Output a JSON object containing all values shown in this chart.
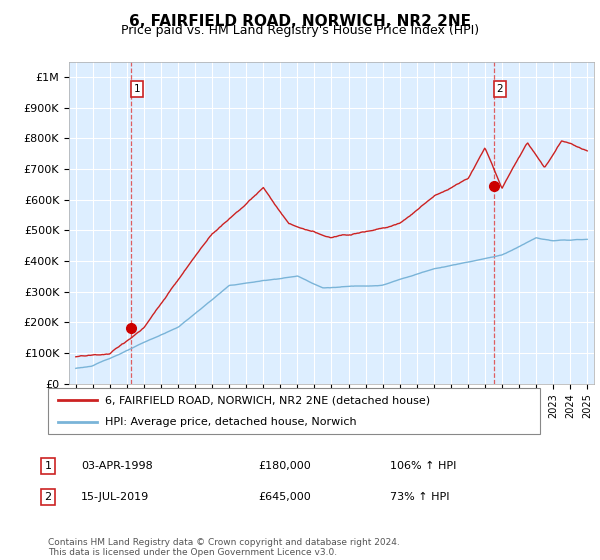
{
  "title": "6, FAIRFIELD ROAD, NORWICH, NR2 2NE",
  "subtitle": "Price paid vs. HM Land Registry's House Price Index (HPI)",
  "ylim": [
    0,
    1050000
  ],
  "yticks": [
    0,
    100000,
    200000,
    300000,
    400000,
    500000,
    600000,
    700000,
    800000,
    900000,
    1000000
  ],
  "ytick_labels": [
    "£0",
    "£100K",
    "£200K",
    "£300K",
    "£400K",
    "£500K",
    "£600K",
    "£700K",
    "£800K",
    "£900K",
    "£1M"
  ],
  "xlim_min": 1994.6,
  "xlim_max": 2025.4,
  "sale1_x": 1998.25,
  "sale1_y": 180000,
  "sale2_x": 2019.54,
  "sale2_y": 645000,
  "hpi_line_color": "#7ab4d8",
  "price_line_color": "#cc2222",
  "sale_dot_color": "#cc0000",
  "dashed_line_color": "#dd4444",
  "background_color": "#ffffff",
  "plot_bg_color": "#ddeeff",
  "grid_color": "#ffffff",
  "legend_label_price": "6, FAIRFIELD ROAD, NORWICH, NR2 2NE (detached house)",
  "legend_label_hpi": "HPI: Average price, detached house, Norwich",
  "annotation1_date": "03-APR-1998",
  "annotation1_price": "£180,000",
  "annotation1_hpi": "106% ↑ HPI",
  "annotation2_date": "15-JUL-2019",
  "annotation2_price": "£645,000",
  "annotation2_hpi": "73% ↑ HPI",
  "footer": "Contains HM Land Registry data © Crown copyright and database right 2024.\nThis data is licensed under the Open Government Licence v3.0.",
  "title_fontsize": 11,
  "subtitle_fontsize": 9,
  "label_box_color": "#cc2222"
}
